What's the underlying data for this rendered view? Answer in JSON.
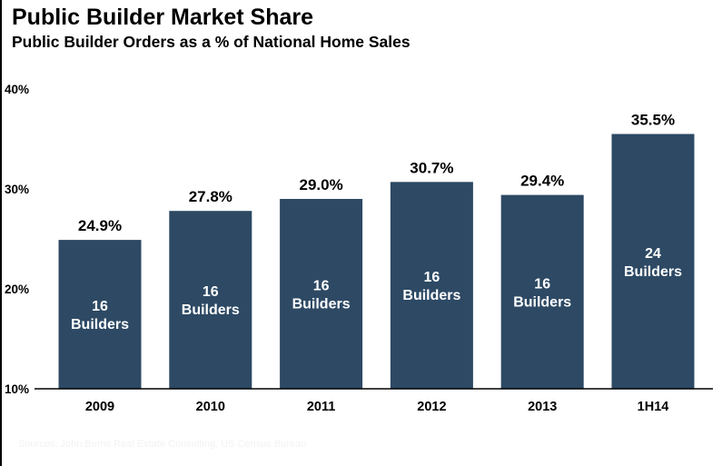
{
  "chart_data": {
    "type": "bar",
    "title": "Public Builder Market Share",
    "subtitle": "Public Builder Orders as a % of National Home Sales",
    "categories": [
      "2009",
      "2010",
      "2011",
      "2012",
      "2013",
      "1H14"
    ],
    "values": [
      24.9,
      27.8,
      29.0,
      30.7,
      29.4,
      35.5
    ],
    "value_labels": [
      "24.9%",
      "27.8%",
      "29.0%",
      "30.7%",
      "29.4%",
      "35.5%"
    ],
    "bar_labels": [
      [
        "16",
        "Builders"
      ],
      [
        "16",
        "Builders"
      ],
      [
        "16",
        "Builders"
      ],
      [
        "16",
        "Builders"
      ],
      [
        "16",
        "Builders"
      ],
      [
        "24",
        "Builders"
      ]
    ],
    "y_ticks": [
      {
        "value": 10,
        "label": "10%"
      },
      {
        "value": 20,
        "label": "20%"
      },
      {
        "value": 30,
        "label": "30%"
      },
      {
        "value": 40,
        "label": "40%"
      }
    ],
    "ylim": [
      10,
      40
    ],
    "xlabel": "",
    "ylabel": "",
    "grid": false,
    "bar_color": "#2d4964",
    "bar_label_color": "#ffffff",
    "footer": "Sources: John Burns Real Estate Consulting, US Census Bureau"
  }
}
